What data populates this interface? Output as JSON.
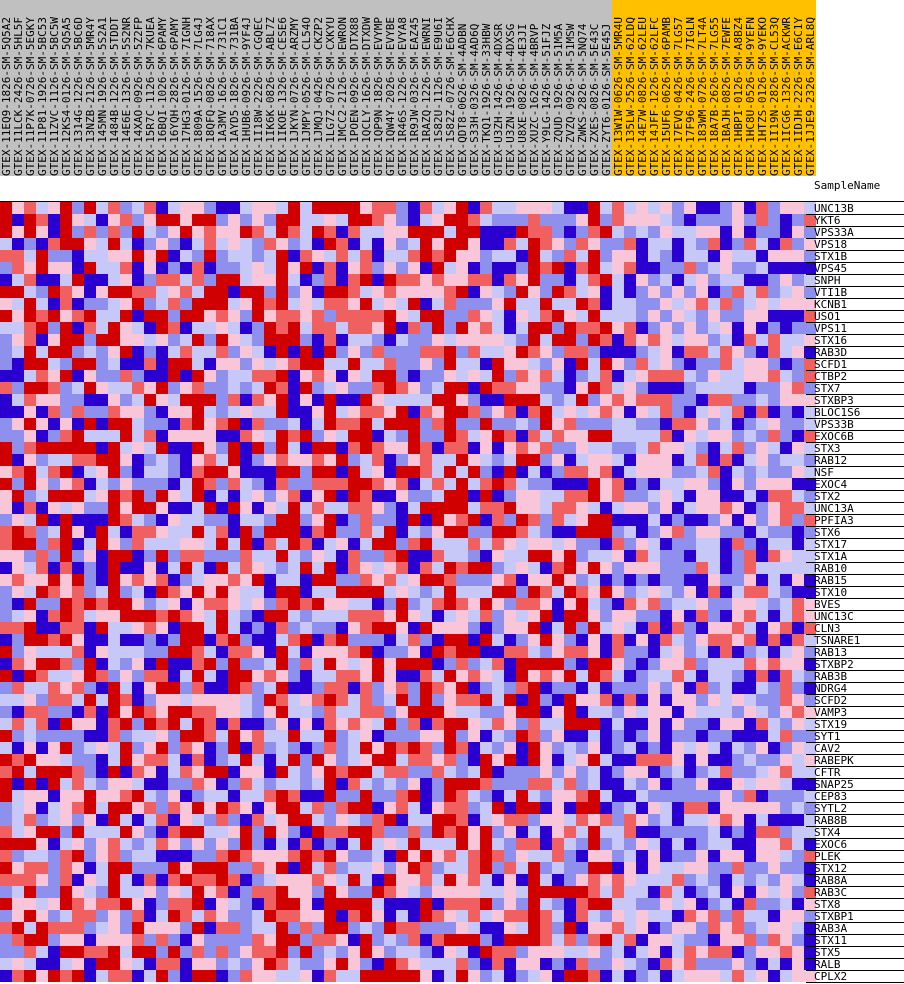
{
  "chart_data": {
    "type": "heatmap",
    "column_header_label": "SampleName",
    "colors": {
      "group_a_header": "#c0c0c0",
      "group_b_header": "#ffc000",
      "scale": [
        "#2a00d0",
        "#8f90ee",
        "#c8c8f8",
        "#f8c6d8",
        "#f06060",
        "#d00000"
      ]
    },
    "samples": [
      {
        "name": "GTEX-11EQ9-1826-SM-5Q5A2",
        "group": "a"
      },
      {
        "name": "GTEX-11LCK-2426-SM-5HL5F",
        "group": "a"
      },
      {
        "name": "GTEX-11P7K-0726-SM-5EGKY",
        "group": "a"
      },
      {
        "name": "GTEX-11P81-1926-SM-5BC53",
        "group": "a"
      },
      {
        "name": "GTEX-11ZVC-1126-SM-5BC5W",
        "group": "a"
      },
      {
        "name": "GTEX-12KS4-0126-SM-5Q5A5",
        "group": "a"
      },
      {
        "name": "GTEX-1314G-1226-SM-5BC6D",
        "group": "a"
      },
      {
        "name": "GTEX-13NZB-2126-SM-5MR4Y",
        "group": "a"
      },
      {
        "name": "GTEX-145MN-1926-SM-5S2A1",
        "group": "a"
      },
      {
        "name": "GTEX-1484B-1226-SM-5TDDT",
        "group": "a"
      },
      {
        "name": "GTEX-14E6E-1326-SM-5S2NR",
        "group": "a"
      },
      {
        "name": "GTEX-14XAO-0926-SM-5Z2FP",
        "group": "a"
      },
      {
        "name": "GTEX-15R7C-1126-SM-7KUEA",
        "group": "a"
      },
      {
        "name": "GTEX-16BQI-1026-SM-6PAMY",
        "group": "a"
      },
      {
        "name": "GTEX-16YQH-2826-SM-6PAMY",
        "group": "a"
      },
      {
        "name": "GTEX-17HG3-0126-SM-7IGNH",
        "group": "a"
      },
      {
        "name": "GTEX-1809A-1526-SM-7LG4J",
        "group": "a"
      },
      {
        "name": "GTEX-18QFQ-0826-SM-718AX",
        "group": "a"
      },
      {
        "name": "GTEX-1A3MV-1626-SM-731C1",
        "group": "a"
      },
      {
        "name": "GTEX-1AYD5-1826-SM-731BA",
        "group": "a"
      },
      {
        "name": "GTEX-1HUB6-0926-SM-9YF4J",
        "group": "a"
      },
      {
        "name": "GTEX-1I18W-2226-SM-CGQEC",
        "group": "a"
      },
      {
        "name": "GTEX-1IK6K-0826-SM-ABL7Z",
        "group": "a"
      },
      {
        "name": "GTEX-1IKOE-1326-SM-CESE6",
        "group": "a"
      },
      {
        "name": "GTEX-1JKYN-0726-SM-ARZMY",
        "group": "a"
      },
      {
        "name": "GTEX-1JMPY-0526-SM-CL54O",
        "group": "a"
      },
      {
        "name": "GTEX-1JMQJ-0426-SM-CKZP2",
        "group": "a"
      },
      {
        "name": "GTEX-1LG7Z-0726-SM-CXKYU",
        "group": "a"
      },
      {
        "name": "GTEX-1MCC2-2126-SM-EWRON",
        "group": "a"
      },
      {
        "name": "GTEX-1POEN-0926-SM-DTX88",
        "group": "a"
      },
      {
        "name": "GTEX-1QCLY-1626-SM-DTXDW",
        "group": "a"
      },
      {
        "name": "GTEX-1QP9N-1826-SM-EVYMP",
        "group": "a"
      },
      {
        "name": "GTEX-1QW4Y-2026-SM-EVYBE",
        "group": "a"
      },
      {
        "name": "GTEX-1R46S-1226-SM-EVYA8",
        "group": "a"
      },
      {
        "name": "GTEX-1R9JW-0326-SM-EAZ45",
        "group": "a"
      },
      {
        "name": "GTEX-1RAZQ-1226-SM-EWRNI",
        "group": "a"
      },
      {
        "name": "GTEX-1S82U-1126-SM-E9U6I",
        "group": "a"
      },
      {
        "name": "GTEX-1S82Z-0726-SM-E6CHX",
        "group": "a"
      },
      {
        "name": "GTEX-QDT8-0626-SM-4ADBN",
        "group": "a"
      },
      {
        "name": "GTEX-S33H-0326-SM-4AD6Q",
        "group": "a"
      },
      {
        "name": "GTEX-TKQ1-1926-SM-33HBW",
        "group": "a"
      },
      {
        "name": "GTEX-U3ZH-1426-SM-4DXSR",
        "group": "a"
      },
      {
        "name": "GTEX-U3ZN-1926-SM-4DXSG",
        "group": "a"
      },
      {
        "name": "GTEX-U8XE-0826-SM-4E3JI",
        "group": "a"
      },
      {
        "name": "GTEX-XUZC-1626-SM-4BRVP",
        "group": "a"
      },
      {
        "name": "GTEX-Y9LG-1426-SM-51FJZ",
        "group": "a"
      },
      {
        "name": "GTEX-ZQUD-1926-SM-51M5A",
        "group": "a"
      },
      {
        "name": "GTEX-ZVZQ-0926-SM-51MSW",
        "group": "a"
      },
      {
        "name": "GTEX-ZWKS-2826-SM-5NQ74",
        "group": "a"
      },
      {
        "name": "GTEX-ZXES-0826-SM-5E43C",
        "group": "a"
      },
      {
        "name": "GTEX-ZYT6-0126-SM-5E45J",
        "group": "a"
      },
      {
        "name": "GTEX-13W1W-0626-SM-5MR4U",
        "group": "b"
      },
      {
        "name": "GTEX-135LW-2526-SM-62LDQ",
        "group": "b"
      },
      {
        "name": "GTEX-14E7W-0826-SM-62LEU",
        "group": "b"
      },
      {
        "name": "GTEX-14JFF-1226-SM-62LFC",
        "group": "b"
      },
      {
        "name": "GTEX-15UF6-0626-SM-6PAMB",
        "group": "b"
      },
      {
        "name": "GTEX-17EVQ-0426-SM-7LG57",
        "group": "b"
      },
      {
        "name": "GTEX-17F96-2426-SM-7IGLN",
        "group": "b"
      },
      {
        "name": "GTEX-183WM-0726-SM-7LT4A",
        "group": "b"
      },
      {
        "name": "GTEX-18A7B-2626-SM-7LG55",
        "group": "b"
      },
      {
        "name": "GTEX-1BAJH-0826-SM-7EWFE",
        "group": "b"
      },
      {
        "name": "GTEX-1HBPI-0126-SM-A8BZ4",
        "group": "b"
      },
      {
        "name": "GTEX-1HC8U-0526-SM-9YEFN",
        "group": "b"
      },
      {
        "name": "GTEX-1HTZS-0126-SM-9YEKO",
        "group": "b"
      },
      {
        "name": "GTEX-1I19N-2826-SM-CL53Q",
        "group": "b"
      },
      {
        "name": "GTEX-1ICG6-1326-SM-ACKWR",
        "group": "b"
      },
      {
        "name": "GTEX-1IDJH-2226-SM-E6C1Y",
        "group": "b"
      },
      {
        "name": "GTEX-1JJE9-2326-SM-ARL8Q",
        "group": "b"
      }
    ],
    "genes": [
      "UNC13B",
      "YKT6",
      "VPS33A",
      "VPS18",
      "STX1B",
      "VPS45",
      "SNPH",
      "VTI1B",
      "KCNB1",
      "USO1",
      "VPS11",
      "STX16",
      "RAB3D",
      "SCFD1",
      "CTBP2",
      "STX7",
      "STXBP3",
      "BLOC1S6",
      "VPS33B",
      "EXOC6B",
      "STX3",
      "RAB12",
      "NSF",
      "EXOC4",
      "STX2",
      "UNC13A",
      "PPFIA3",
      "STX6",
      "STX17",
      "STX1A",
      "RAB10",
      "RAB15",
      "STX10",
      "BVES",
      "UNC13C",
      "CLN3",
      "TSNARE1",
      "RAB13",
      "STXBP2",
      "RAB3B",
      "NDRG4",
      "SCFD2",
      "VAMP3",
      "STX19",
      "SYT1",
      "CAV2",
      "RABEPK",
      "CFTR",
      "SNAP25",
      "CEP83",
      "SYTL2",
      "RAB8B",
      "STX4",
      "EXOC6",
      "PLEK",
      "STX12",
      "RAB8A",
      "RAB3C",
      "STX8",
      "STXBP1",
      "RAB3A",
      "STX11",
      "STX5",
      "RALB",
      "CPLX2"
    ]
  }
}
